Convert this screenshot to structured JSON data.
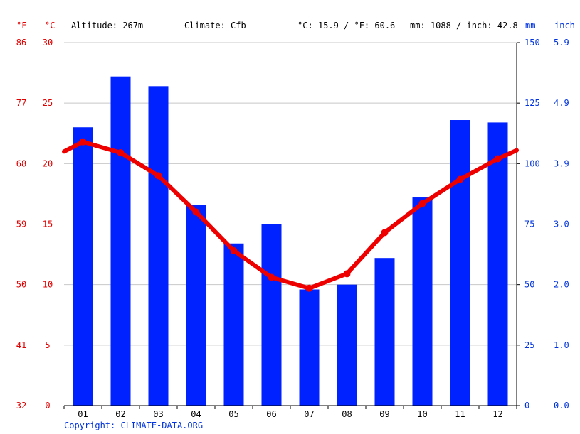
{
  "header": {
    "unit_f": "°F",
    "unit_c": "°C",
    "altitude": "Altitude: 267m",
    "climate": "Climate: Cfb",
    "temp_avg": "°C: 15.9 / °F: 60.6",
    "precip_total": "mm: 1088 / inch: 42.8",
    "unit_mm": "mm",
    "unit_inch": "inch"
  },
  "footer": {
    "copyright": "Copyright: CLIMATE-DATA.ORG"
  },
  "colors": {
    "bars": "#0022ff",
    "line": "#ee0000",
    "left_axis": "#e00000",
    "right_axis": "#0033dd",
    "grid": "#c8c8c8"
  },
  "chart_data": {
    "type": "bar",
    "categories": [
      "01",
      "02",
      "03",
      "04",
      "05",
      "06",
      "07",
      "08",
      "09",
      "10",
      "11",
      "12"
    ],
    "series": [
      {
        "type": "bar",
        "axis": "right",
        "values": [
          115,
          136,
          132,
          83,
          67,
          75,
          48,
          50,
          61,
          86,
          118,
          117
        ]
      },
      {
        "type": "line",
        "axis": "left",
        "values": [
          21.8,
          20.9,
          19.0,
          16.0,
          12.8,
          10.6,
          9.7,
          10.9,
          14.3,
          16.7,
          18.7,
          20.4
        ]
      }
    ],
    "line_edge_values": [
      21.0,
      21.1
    ],
    "left_axis_c": {
      "ylim": [
        0,
        30
      ],
      "ticks": [
        "0",
        "5",
        "10",
        "15",
        "20",
        "25",
        "30"
      ]
    },
    "left_axis_f": {
      "ticks": [
        "32",
        "41",
        "50",
        "59",
        "68",
        "77",
        "86"
      ]
    },
    "right_axis_mm": {
      "ylim": [
        0,
        150
      ],
      "ticks": [
        "0",
        "25",
        "50",
        "75",
        "100",
        "125",
        "150"
      ]
    },
    "right_axis_inch": {
      "ticks": [
        "0.0",
        "1.0",
        "2.0",
        "3.0",
        "3.9",
        "4.9",
        "5.9"
      ]
    },
    "grid": true
  }
}
